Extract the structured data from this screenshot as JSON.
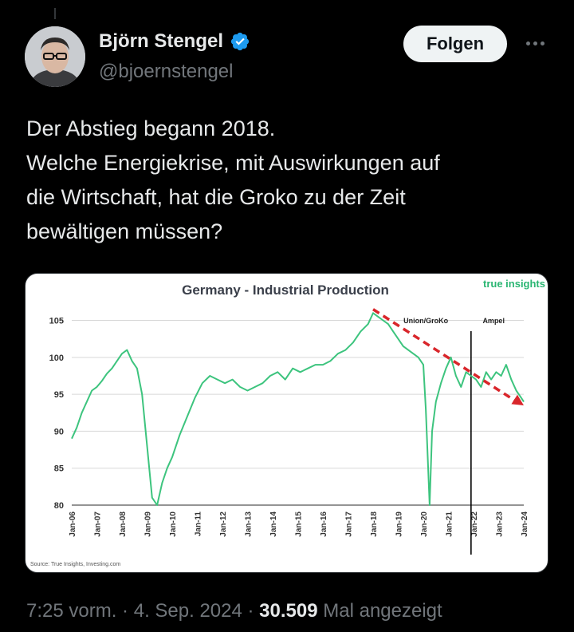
{
  "author": {
    "name": "Björn Stengel",
    "handle": "@bjoernstengel",
    "verified": true
  },
  "follow_label": "Folgen",
  "more_icon": "more-horizontal-icon",
  "tweet": {
    "lines": [
      "Der Abstieg begann 2018.",
      "Welche Energiekrise, mit Auswirkungen auf",
      "die Wirtschaft, hat die Groko zu der Zeit",
      "bewältigen müssen?"
    ]
  },
  "meta": {
    "time": "7:25 vorm.",
    "date": "4. Sep. 2024",
    "views": "30.509",
    "views_label": "Mal angezeigt"
  },
  "colors": {
    "line": "#3dc47e",
    "trend": "#d9262b",
    "accent": "#1d9bf0"
  },
  "chart_data": {
    "type": "line",
    "title": "Germany - Industrial Production",
    "brand": "true insights",
    "source": "Source: True Insights, Investing.com",
    "ylim": [
      80,
      107
    ],
    "yticks": [
      80,
      85,
      90,
      95,
      100,
      105
    ],
    "x_labels": [
      "Jan-06",
      "Jan-07",
      "Jan-08",
      "Jan-09",
      "Jan-10",
      "Jan-11",
      "Jan-12",
      "Jan-13",
      "Jan-14",
      "Jan-15",
      "Jan-16",
      "Jan-17",
      "Jan-18",
      "Jan-19",
      "Jan-20",
      "Jan-21",
      "Jan-22",
      "Jan-23",
      "Jan-24"
    ],
    "series": [
      {
        "x": [
          2006.0,
          2006.2,
          2006.4,
          2006.6,
          2006.8,
          2007.0,
          2007.2,
          2007.4,
          2007.6,
          2007.8,
          2008.0,
          2008.2,
          2008.4,
          2008.6,
          2008.8,
          2009.0,
          2009.2,
          2009.4,
          2009.6,
          2009.8,
          2010.0,
          2010.3,
          2010.6,
          2010.9,
          2011.2,
          2011.5,
          2011.8,
          2012.1,
          2012.4,
          2012.7,
          2013.0,
          2013.3,
          2013.6,
          2013.9,
          2014.2,
          2014.5,
          2014.8,
          2015.1,
          2015.4,
          2015.7,
          2016.0,
          2016.3,
          2016.6,
          2016.9,
          2017.2,
          2017.5,
          2017.8,
          2018.0,
          2018.2,
          2018.4,
          2018.6,
          2018.8,
          2019.0,
          2019.2,
          2019.4,
          2019.6,
          2019.8,
          2020.0,
          2020.1,
          2020.25,
          2020.35,
          2020.5,
          2020.7,
          2020.9,
          2021.1,
          2021.3,
          2021.5,
          2021.7,
          2021.9,
          2022.1,
          2022.3,
          2022.5,
          2022.7,
          2022.9,
          2023.1,
          2023.3,
          2023.5,
          2023.7,
          2023.9,
          2024.0
        ],
        "y": [
          89.0,
          90.5,
          92.5,
          94.0,
          95.5,
          96.0,
          96.8,
          97.8,
          98.5,
          99.5,
          100.5,
          101.0,
          99.5,
          98.5,
          95.0,
          88.0,
          81.0,
          80.0,
          83.0,
          85.0,
          86.5,
          89.5,
          92.0,
          94.5,
          96.5,
          97.5,
          97.0,
          96.5,
          97.0,
          96.0,
          95.5,
          96.0,
          96.5,
          97.5,
          98.0,
          97.0,
          98.5,
          98.0,
          98.5,
          99.0,
          99.0,
          99.5,
          100.5,
          101.0,
          102.0,
          103.5,
          104.5,
          106.0,
          105.5,
          105.0,
          104.5,
          103.5,
          102.5,
          101.5,
          101.0,
          100.5,
          100.0,
          99.0,
          93.0,
          80.0,
          90.0,
          94.0,
          96.5,
          98.5,
          100.0,
          97.5,
          96.0,
          98.0,
          97.5,
          97.0,
          96.0,
          98.0,
          97.0,
          98.0,
          97.5,
          99.0,
          97.0,
          95.5,
          94.5,
          94.0
        ]
      }
    ],
    "trend_line": {
      "x": [
        2018.0,
        2024.0
      ],
      "y": [
        106.5,
        93.5
      ]
    },
    "annotations": [
      {
        "label": "Union/GroKo",
        "x": 2020.1
      },
      {
        "label": "Ampel",
        "x": 2022.8
      }
    ],
    "separator_x": 2021.9,
    "grid": true
  }
}
